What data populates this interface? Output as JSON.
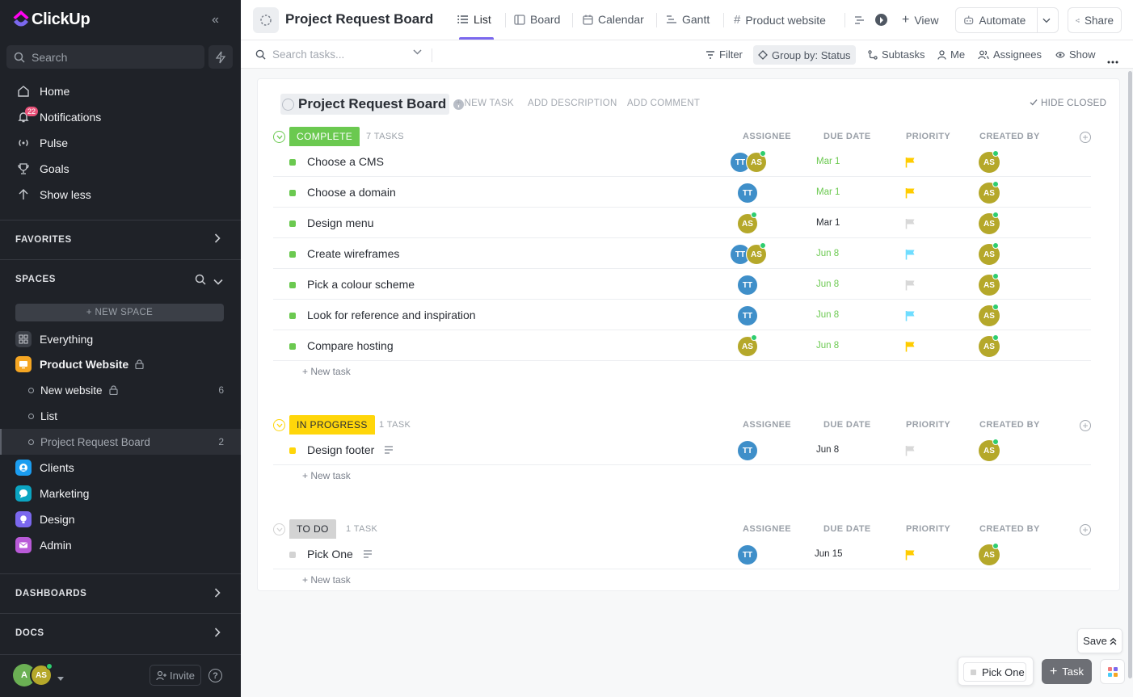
{
  "app": {
    "name": "ClickUp"
  },
  "sidebar": {
    "search_placeholder": "Search",
    "nav": [
      {
        "label": "Home",
        "icon": "home-icon"
      },
      {
        "label": "Notifications",
        "icon": "bell-icon",
        "badge": "22"
      },
      {
        "label": "Pulse",
        "icon": "pulse-icon"
      },
      {
        "label": "Goals",
        "icon": "trophy-icon"
      },
      {
        "label": "Show less",
        "icon": "arrow-up-icon"
      }
    ],
    "favorites_label": "FAVORITES",
    "spaces_label": "SPACES",
    "new_space_label": "+ NEW SPACE",
    "spaces": [
      {
        "label": "Everything",
        "color": "#3b3f47",
        "icon": "grid-icon"
      },
      {
        "label": "Product Website",
        "color": "#f5a623",
        "icon": "monitor-icon",
        "locked": true
      },
      {
        "label": "Clients",
        "color": "#1b9df0",
        "icon": "person-icon"
      },
      {
        "label": "Marketing",
        "color": "#0ba5c2",
        "icon": "chat-icon"
      },
      {
        "label": "Design",
        "color": "#7b68ee",
        "icon": "bulb-icon"
      },
      {
        "label": "Admin",
        "color": "#b95ad8",
        "icon": "mail-icon"
      }
    ],
    "sub_items": [
      {
        "label": "New website",
        "count": "6",
        "locked": true
      },
      {
        "label": "List",
        "count": ""
      },
      {
        "label": "Project Request Board",
        "count": "2",
        "active": true
      }
    ],
    "dashboards_label": "DASHBOARDS",
    "docs_label": "DOCS",
    "footer": {
      "avatar1": "A",
      "avatar2": "AS",
      "invite_label": "Invite",
      "help": "?"
    }
  },
  "topbar": {
    "title": "Project Request Board",
    "tabs": [
      {
        "label": "List",
        "icon": "list-icon",
        "active": true
      },
      {
        "label": "Board",
        "icon": "board-icon"
      },
      {
        "label": "Calendar",
        "icon": "calendar-icon"
      },
      {
        "label": "Gantt",
        "icon": "gantt-icon"
      },
      {
        "label": "Product website",
        "icon": "hash-icon"
      }
    ],
    "add_view_label": "View",
    "automate_label": "Automate",
    "share_label": "Share"
  },
  "toolbar": {
    "search_placeholder": "Search tasks...",
    "filter_label": "Filter",
    "group_by_label": "Group by: Status",
    "subtasks_label": "Subtasks",
    "me_label": "Me",
    "assignees_label": "Assignees",
    "show_label": "Show"
  },
  "list": {
    "title": "Project Request Board",
    "new_task_link": "+ NEW TASK",
    "add_description": "ADD DESCRIPTION",
    "add_comment": "ADD COMMENT",
    "hide_closed": "HIDE CLOSED",
    "columns": {
      "assignee": "ASSIGNEE",
      "due": "DUE DATE",
      "priority": "PRIORITY",
      "created": "CREATED BY"
    },
    "new_task_row": "+ New task",
    "groups": [
      {
        "status": "COMPLETE",
        "count": "7 TASKS",
        "color": "#6bc950",
        "text_color": "#ffffff",
        "tasks": [
          {
            "name": "Choose a CMS",
            "assignees": [
              "TT",
              "AS"
            ],
            "due": "Mar 1",
            "due_color": "#6bc950",
            "priority_color": "#ffcc00",
            "creator": "AS"
          },
          {
            "name": "Choose a domain",
            "assignees": [
              "TT"
            ],
            "due": "Mar 1",
            "due_color": "#6bc950",
            "priority_color": "#ffcc00",
            "creator": "AS"
          },
          {
            "name": "Design menu",
            "assignees": [
              "AS"
            ],
            "due": "Mar 1",
            "due_color": "#292d34",
            "priority_color": "#d8d8d8",
            "creator": "AS"
          },
          {
            "name": "Create wireframes",
            "assignees": [
              "TT",
              "AS"
            ],
            "due": "Jun 8",
            "due_color": "#6bc950",
            "priority_color": "#6fddff",
            "creator": "AS"
          },
          {
            "name": "Pick a colour scheme",
            "assignees": [
              "TT"
            ],
            "due": "Jun 8",
            "due_color": "#6bc950",
            "priority_color": "#d8d8d8",
            "creator": "AS"
          },
          {
            "name": "Look for reference and inspiration",
            "assignees": [
              "TT"
            ],
            "due": "Jun 8",
            "due_color": "#6bc950",
            "priority_color": "#6fddff",
            "creator": "AS"
          },
          {
            "name": "Compare hosting",
            "assignees": [
              "AS"
            ],
            "due": "Jun 8",
            "due_color": "#6bc950",
            "priority_color": "#ffcc00",
            "creator": "AS"
          }
        ]
      },
      {
        "status": "IN PROGRESS",
        "count": "1 TASK",
        "color": "#ffd60a",
        "text_color": "#292d34",
        "tasks": [
          {
            "name": "Design footer",
            "assignees": [
              "TT"
            ],
            "due": "Jun 8",
            "due_color": "#292d34",
            "priority_color": "#d8d8d8",
            "creator": "AS",
            "has_description": true
          }
        ]
      },
      {
        "status": "TO DO",
        "count": "1 TASK",
        "color": "#d3d3d3",
        "text_color": "#292d34",
        "tasks": [
          {
            "name": "Pick One",
            "assignees": [
              "TT"
            ],
            "due": "Jun 15",
            "due_color": "#292d34",
            "priority_color": "#ffcc00",
            "creator": "AS",
            "has_description": true
          }
        ]
      }
    ]
  },
  "footer_actions": {
    "save_label": "Save",
    "tray_item": "Pick One",
    "task_label": "Task"
  },
  "colors": {
    "tt_avatar": "#3f8fc9",
    "as_avatar": "#b5a82a",
    "accent": "#7b68ee"
  }
}
